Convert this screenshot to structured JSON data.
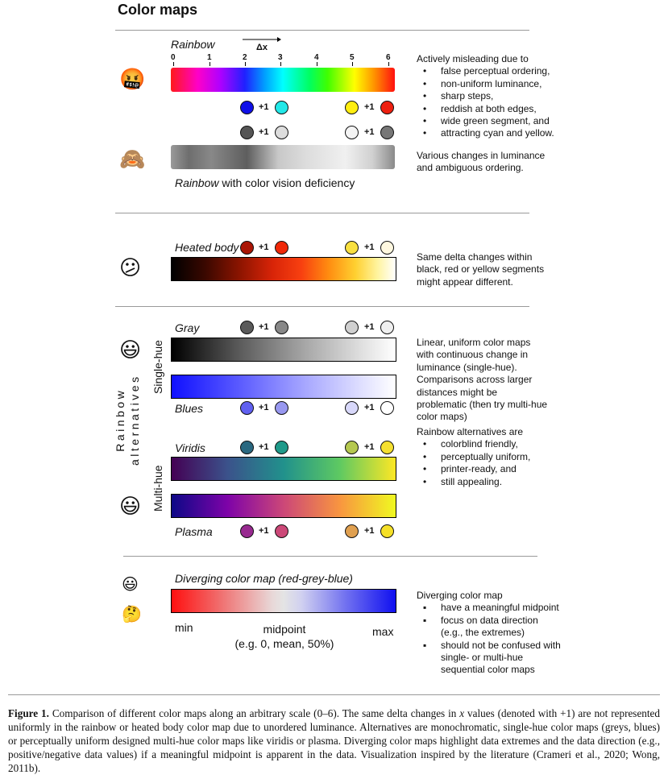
{
  "title": "Color maps",
  "rainbow": {
    "label": "Rainbow",
    "axis_label": "Δx",
    "ticks": [
      "0",
      "1",
      "2",
      "3",
      "4",
      "5",
      "6"
    ],
    "plus": "+1",
    "cvd_label_italic": "Rainbow",
    "cvd_label_rest": " with color vision deficiency",
    "desc_intro": "Actively misleading due to",
    "desc_items": [
      "false perceptual ordering,",
      "non-uniform luminance,",
      "sharp steps,",
      "reddish at both edges,",
      "wide green segment, and",
      "attracting cyan and yellow."
    ],
    "cvd_desc": "Various changes in luminance and ambiguous ordering.",
    "dot_colors_top": [
      "#1010e8",
      "#22e8e8",
      "#ffee10",
      "#ee2010"
    ],
    "dot_colors_cvd": [
      "#555555",
      "#dddddd",
      "#f4f4f4",
      "#777777"
    ],
    "angry_emoji": "🤬",
    "monkey_emoji": "🙈"
  },
  "heated": {
    "label": "Heated body",
    "plus": "+1",
    "desc": "Same delta changes within black, red or yellow segments might appear different.",
    "dot_colors": [
      "#aa1505",
      "#f02808",
      "#f8e040",
      "#fff8e0"
    ],
    "emoji": "😕"
  },
  "alternatives": {
    "group_label_line1": "Rainbow",
    "group_label_line2": "alternatives",
    "single_hue_label": "Single-hue",
    "multi_hue_label": "Multi-hue",
    "gray_label": "Gray",
    "blues_label": "Blues",
    "viridis_label": "Viridis",
    "plasma_label": "Plasma",
    "plus": "+1",
    "single_desc": "Linear, uniform color maps with continuous change in luminance (single-hue). Comparisons across larger distances might be problematic (then try multi-hue color maps)",
    "multi_desc_intro": "Rainbow alternatives are",
    "multi_desc_items": [
      "colorblind friendly,",
      "perceptually uniform,",
      "printer-ready, and",
      "still appealing."
    ],
    "gray_dots": [
      "#5a5a5a",
      "#888888",
      "#d0d0d0",
      "#f0f0f0"
    ],
    "blues_dots": [
      "#6060f0",
      "#9898f0",
      "#d8d8fa",
      "#ffffff"
    ],
    "viridis_dots": [
      "#2a6880",
      "#1f9a8a",
      "#b5c850",
      "#f5e030"
    ],
    "plasma_dots": [
      "#982a90",
      "#cc4878",
      "#e0a050",
      "#f5e028"
    ],
    "emoji": "😃"
  },
  "diverging": {
    "label": "Diverging color map (red-grey-blue)",
    "min": "min",
    "midpoint": "midpoint",
    "midpoint_note": "(e.g. 0, mean, 50%)",
    "max": "max",
    "desc_intro": "Diverging color map",
    "desc_items": [
      "have a meaningful midpoint",
      "focus on data direction (e.g., the extremes)",
      "should not be confused with single- or multi-hue sequential color maps"
    ],
    "emoji_top": "😃",
    "emoji_bottom": "🤔"
  },
  "caption": {
    "figure_label": "Figure 1.",
    "text_1": " Comparison of different color maps along an arbitrary scale (0–6). The same delta changes in ",
    "x_var": "x",
    "text_2": " values (denoted with +1) are not represented uniformly in the rainbow or heated body color map due to unordered luminance. Alternatives are monochromatic, single-hue color maps (greys, blues) or perceptually uniform designed multi-hue color maps like viridis or plasma. Diverging color maps highlight data extremes and the data direction (e.g., positive/negative data values) if a meaningful midpoint is apparent in the data. Visualization inspired by the literature (Crameri et al., 2020; Wong, 2011b)."
  }
}
